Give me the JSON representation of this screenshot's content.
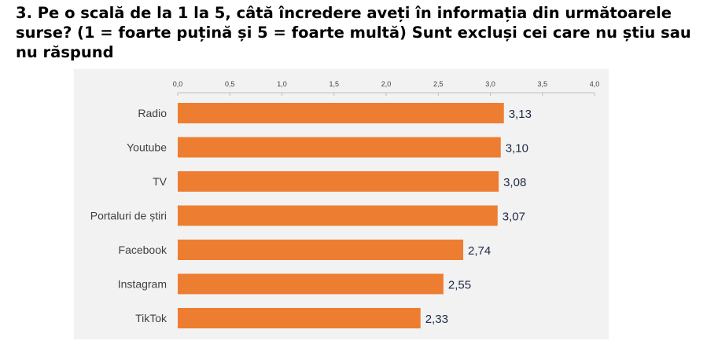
{
  "question": {
    "text": "3. Pe o scală de la 1 la 5, câtă încredere aveți în informația din următoarele surse? (1 = foarte puțină și 5 = foarte multă) Sunt excluși cei care nu știu sau nu răspund"
  },
  "colors": {
    "bar": "#ed7d31",
    "panel_background": "#f2f2f2",
    "axis": "#bfbfbf",
    "data_label": "#1f2a44",
    "category_label": "#404040"
  },
  "chart_data": {
    "type": "bar",
    "orientation": "horizontal",
    "categories": [
      "Radio",
      "Youtube",
      "TV",
      "Portaluri de știri",
      "Facebook",
      "Instagram",
      "TikTok"
    ],
    "values": [
      3.13,
      3.1,
      3.08,
      3.07,
      2.74,
      2.55,
      2.33
    ],
    "value_labels": [
      "3,13",
      "3,10",
      "3,08",
      "3,07",
      "2,74",
      "2,55",
      "2,33"
    ],
    "x_ticks": [
      0,
      0.5,
      1.0,
      1.5,
      2.0,
      2.5,
      3.0,
      3.5,
      4.0
    ],
    "x_tick_labels": [
      "0,0",
      "0,5",
      "1,0",
      "1,5",
      "2,0",
      "2,5",
      "3,0",
      "3,5",
      "4,0"
    ],
    "xlim": [
      0,
      4.0
    ],
    "x_axis_position": "top",
    "grid": false,
    "legend": "none",
    "title": "",
    "xlabel": "",
    "ylabel": ""
  }
}
